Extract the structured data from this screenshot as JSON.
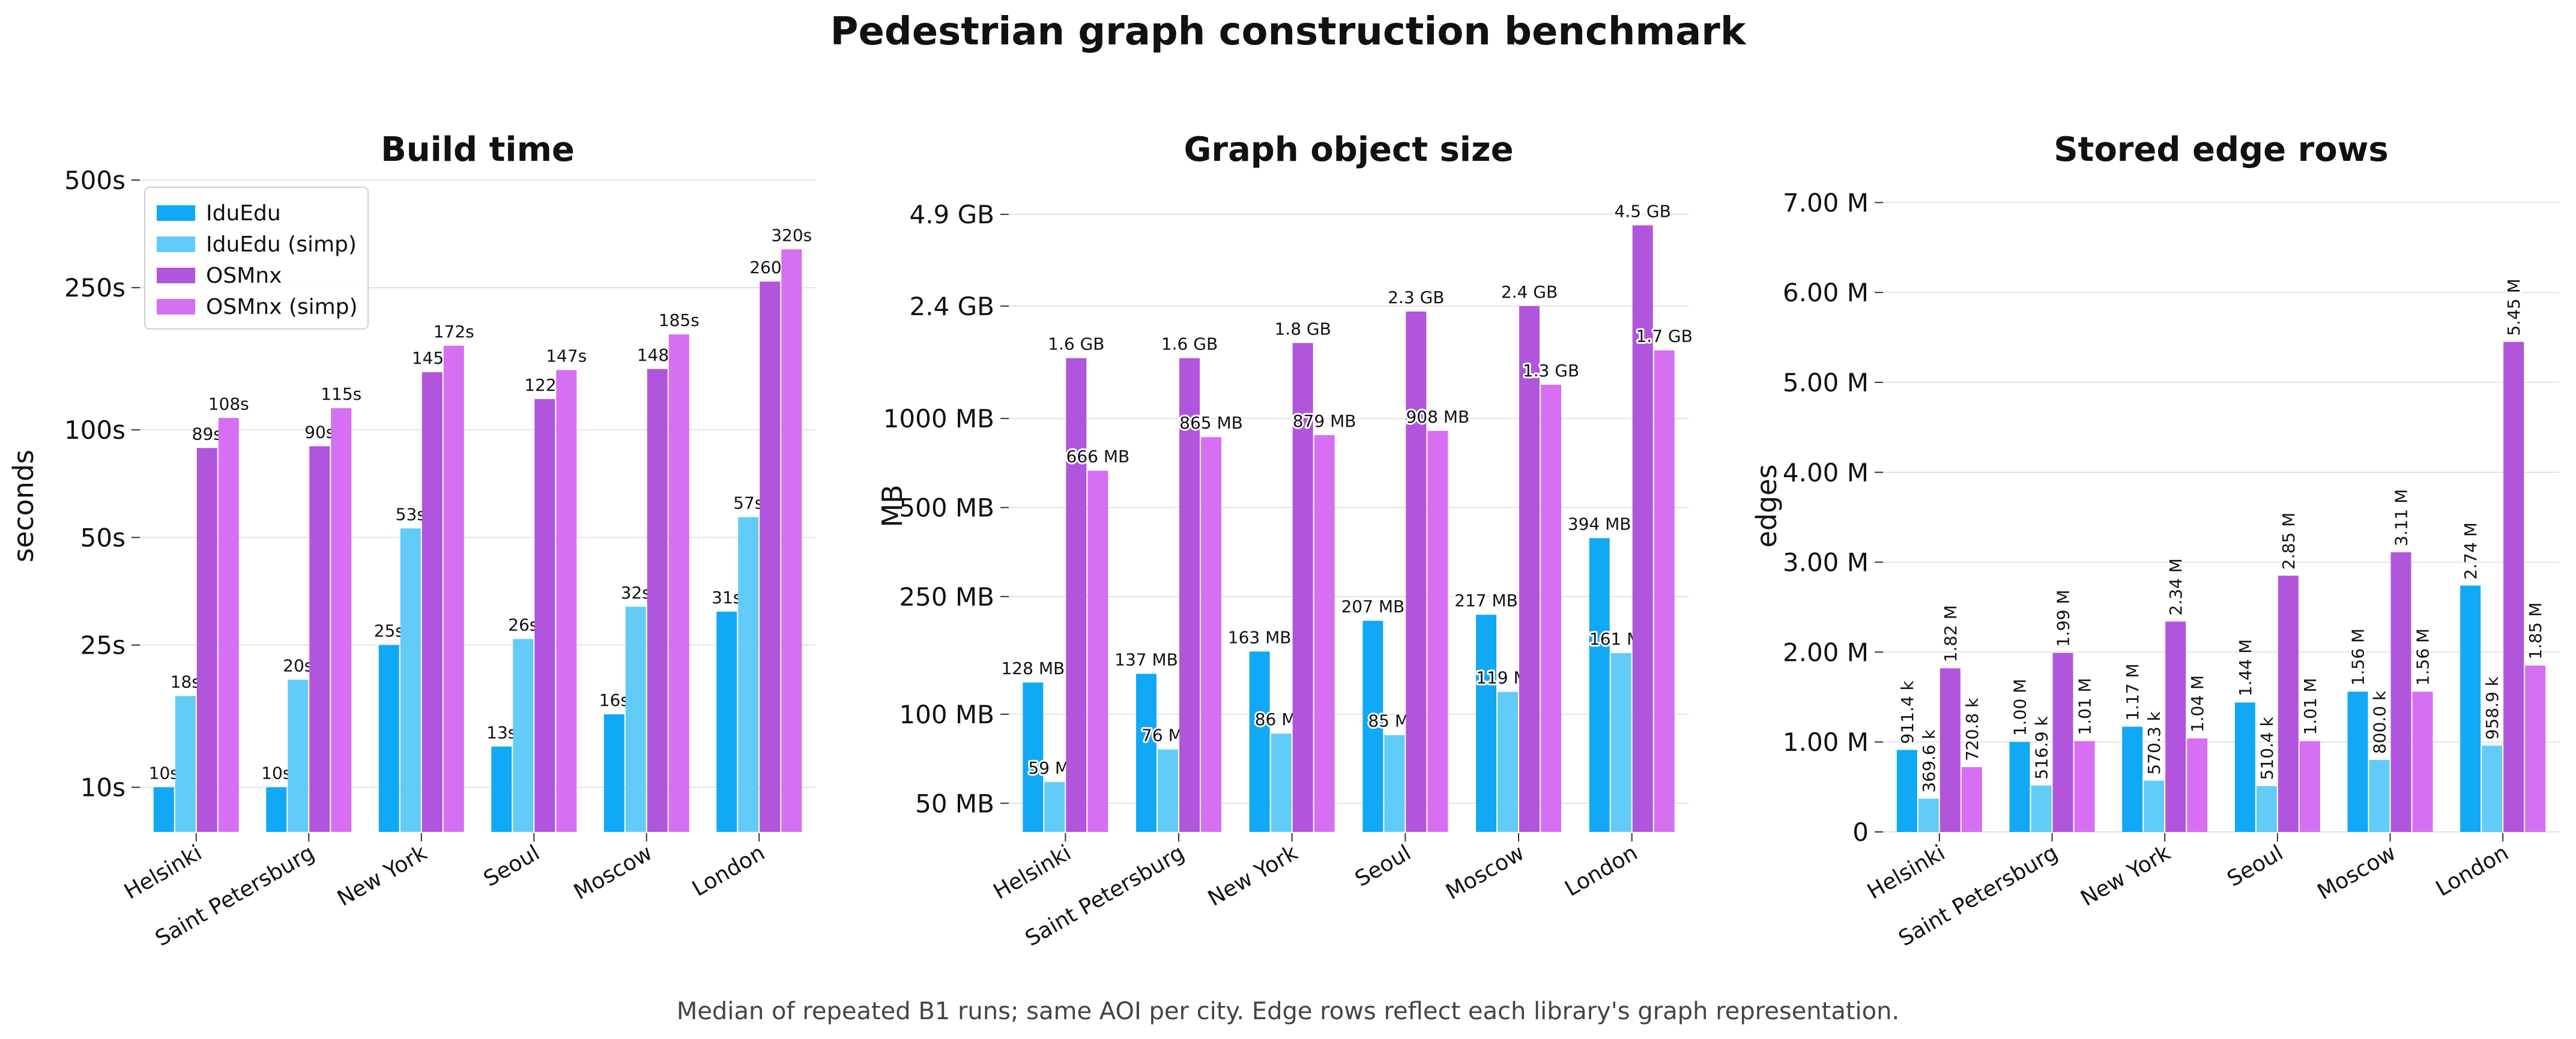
{
  "figure": {
    "title": "Pedestrian graph construction benchmark",
    "footnote": "Median of repeated B1 runs; same AOI per city. Edge rows reflect each library's graph representation."
  },
  "colors": {
    "IduEdu": "#11a8f5",
    "IduEdu (simp)": "#62cbf8",
    "OSMnx": "#b055dc",
    "OSMnx (simp)": "#d66ff2"
  },
  "chart_data": [
    {
      "id": "build-time",
      "type": "bar",
      "title": "Build time",
      "xlabel": "",
      "ylabel": "seconds",
      "yscale": "log",
      "ylim": [
        7.5,
        500
      ],
      "yticks": [
        10,
        25,
        50,
        100,
        250,
        500
      ],
      "ytick_labels": [
        "10s",
        "25s",
        "50s",
        "100s",
        "250s",
        "500s"
      ],
      "grid": true,
      "legend": "upper-left",
      "categories": [
        "Helsinki",
        "Saint Petersburg",
        "New York",
        "Seoul",
        "Moscow",
        "London"
      ],
      "series": [
        {
          "name": "IduEdu",
          "values": [
            10,
            10,
            25,
            13,
            16,
            31
          ],
          "labels": [
            "10s",
            "10s",
            "25s",
            "13s",
            "16s",
            "31s"
          ]
        },
        {
          "name": "IduEdu (simp)",
          "values": [
            18,
            20,
            53,
            26,
            32,
            57
          ],
          "labels": [
            "18s",
            "20s",
            "53s",
            "26s",
            "32s",
            "57s"
          ]
        },
        {
          "name": "OSMnx",
          "values": [
            89,
            90,
            145,
            122,
            148,
            260
          ],
          "labels": [
            "89s",
            "90s",
            "145s",
            "122s",
            "148s",
            "260s"
          ]
        },
        {
          "name": "OSMnx (simp)",
          "values": [
            108,
            115,
            172,
            147,
            185,
            320
          ],
          "labels": [
            "108s",
            "115s",
            "172s",
            "147s",
            "185s",
            "320s"
          ]
        }
      ]
    },
    {
      "id": "graph-size",
      "type": "bar",
      "title": "Graph object size",
      "xlabel": "",
      "ylabel": "MB",
      "yscale": "log",
      "ylim": [
        40,
        6400
      ],
      "yticks": [
        50,
        100,
        250,
        500,
        1000,
        2400,
        4900
      ],
      "ytick_labels": [
        "50 MB",
        "100 MB",
        "250 MB",
        "500 MB",
        "1000 MB",
        "2.4 GB",
        "4.9 GB"
      ],
      "grid": true,
      "legend": "none",
      "categories": [
        "Helsinki",
        "Saint Petersburg",
        "New York",
        "Seoul",
        "Moscow",
        "London"
      ],
      "series": [
        {
          "name": "IduEdu",
          "values": [
            128,
            137,
            163,
            207,
            217,
            394
          ],
          "labels": [
            "128 MB",
            "137 MB",
            "163 MB",
            "207 MB",
            "217 MB",
            "394 MB"
          ]
        },
        {
          "name": "IduEdu (simp)",
          "values": [
            59,
            76,
            86,
            85,
            119,
            161
          ],
          "labels": [
            "59 MB",
            "76 MB",
            "86 MB",
            "85 MB",
            "119 MB",
            "161 MB"
          ]
        },
        {
          "name": "OSMnx",
          "values": [
            1600,
            1600,
            1800,
            2300,
            2400,
            4500
          ],
          "labels": [
            "1.6 GB",
            "1.6 GB",
            "1.8 GB",
            "2.3 GB",
            "2.4 GB",
            "4.5 GB"
          ]
        },
        {
          "name": "OSMnx (simp)",
          "values": [
            666,
            865,
            879,
            908,
            1300,
            1700
          ],
          "labels": [
            "666 MB",
            "865 MB",
            "879 MB",
            "908 MB",
            "1.3 GB",
            "1.7 GB"
          ]
        }
      ]
    },
    {
      "id": "edge-rows",
      "type": "bar",
      "title": "Stored edge rows",
      "xlabel": "",
      "ylabel": "edges",
      "yscale": "linear",
      "ylim": [
        0,
        7250000
      ],
      "yticks": [
        0,
        1000000,
        2000000,
        3000000,
        4000000,
        5000000,
        6000000,
        7000000
      ],
      "ytick_labels": [
        "0",
        "1.00 M",
        "2.00 M",
        "3.00 M",
        "4.00 M",
        "5.00 M",
        "6.00 M",
        "7.00 M"
      ],
      "grid": true,
      "legend": "none",
      "categories": [
        "Helsinki",
        "Saint Petersburg",
        "New York",
        "Seoul",
        "Moscow",
        "London"
      ],
      "series": [
        {
          "name": "IduEdu",
          "values": [
            911400,
            1000000,
            1170000,
            1440000,
            1560000,
            2740000
          ],
          "labels": [
            "911.4 k",
            "1.00 M",
            "1.17 M",
            "1.44 M",
            "1.56 M",
            "2.74 M"
          ]
        },
        {
          "name": "IduEdu (simp)",
          "values": [
            369600,
            516900,
            570300,
            510400,
            800000,
            958900
          ],
          "labels": [
            "369.6 k",
            "516.9 k",
            "570.3 k",
            "510.4 k",
            "800.0 k",
            "958.9 k"
          ]
        },
        {
          "name": "OSMnx",
          "values": [
            1820000,
            1990000,
            2340000,
            2850000,
            3110000,
            5450000
          ],
          "labels": [
            "1.82 M",
            "1.99 M",
            "2.34 M",
            "2.85 M",
            "3.11 M",
            "5.45 M"
          ]
        },
        {
          "name": "OSMnx (simp)",
          "values": [
            720800,
            1010000,
            1040000,
            1010000,
            1560000,
            1850000
          ],
          "labels": [
            "720.8 k",
            "1.01 M",
            "1.04 M",
            "1.01 M",
            "1.56 M",
            "1.85 M"
          ]
        }
      ]
    }
  ]
}
